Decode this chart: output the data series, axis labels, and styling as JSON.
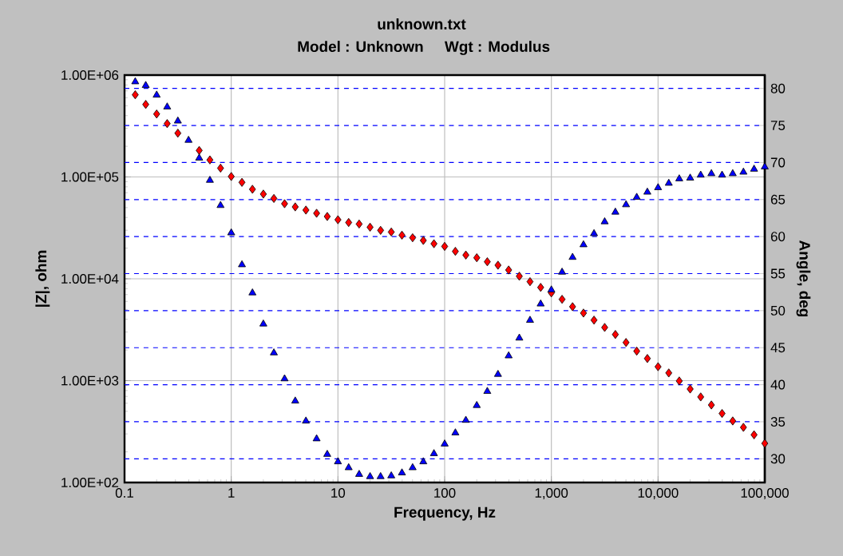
{
  "chart_data": {
    "type": "scatter",
    "title": "unknown.txt",
    "subtitle": "Model : Unknown     Wgt : Modulus",
    "xlabel": "Frequency,  Hz",
    "ylabel": "|Z|, ohm",
    "y2label": "Angle, deg",
    "log": "xy",
    "grid": true,
    "xlim": [
      0.1,
      100000
    ],
    "xticks": [
      0.1,
      1,
      10,
      100,
      {
        "value": 1000,
        "label": "1,000"
      },
      {
        "value": 10000,
        "label": "10,000"
      },
      {
        "value": 100000,
        "label": "100,000"
      }
    ],
    "ylim": [
      100,
      1000000
    ],
    "yticks": [
      {
        "value": 100,
        "label": "1.00E+02"
      },
      {
        "value": 1000,
        "label": "1.00E+03"
      },
      {
        "value": 10000,
        "label": "1.00E+04"
      },
      {
        "value": 100000,
        "label": "1.00E+05"
      },
      {
        "value": 1000000,
        "label": "1.00E+06"
      }
    ],
    "y2lim": [
      26.8,
      81.8
    ],
    "y2ticks": [
      30,
      35,
      40,
      45,
      50,
      55,
      60,
      65,
      70,
      75,
      80
    ],
    "x": [
      0.126,
      0.158,
      0.2,
      0.251,
      0.316,
      0.398,
      0.501,
      0.631,
      0.794,
      1,
      1.26,
      1.58,
      2,
      2.51,
      3.16,
      3.98,
      5.01,
      6.31,
      7.94,
      10,
      12.6,
      15.8,
      20,
      25.1,
      31.6,
      39.8,
      50.1,
      63.1,
      79.4,
      100,
      126,
      158,
      200,
      251,
      316,
      398,
      501,
      631,
      794,
      1000,
      1260,
      1580,
      2000,
      2510,
      3160,
      3980,
      5010,
      6310,
      7940,
      10000,
      12600,
      15800,
      20000,
      25100,
      31600,
      39800,
      50100,
      63100,
      79400,
      100000
    ],
    "series": [
      {
        "color": "#ff0000",
        "marker": "diamond",
        "values": [
          641000,
          515000,
          415000,
          334000,
          269000,
          null,
          182000,
          147000,
          122000,
          101000,
          88500,
          75700,
          67900,
          61500,
          54600,
          50800,
          47300,
          44000,
          40900,
          38000,
          35700,
          34500,
          32100,
          29900,
          28800,
          26800,
          25300,
          23800,
          22100,
          20800,
          18600,
          17100,
          16100,
          14700,
          13600,
          12200,
          10600,
          9370,
          8230,
          7270,
          6290,
          5320,
          4610,
          3930,
          3330,
          2840,
          2370,
          1950,
          1650,
          1370,
          1190,
          993,
          828,
          692,
          577,
          476,
          402,
          348,
          294,
          242
        ]
      },
      {
        "color": "#0000ff",
        "marker": "triangle",
        "axis": "y2",
        "values": [
          80.9,
          80.4,
          79.1,
          77.5,
          75.6,
          73.0,
          70.6,
          67.6,
          64.2,
          60.5,
          56.2,
          52.4,
          48.2,
          44.3,
          40.8,
          37.8,
          35.1,
          32.7,
          30.6,
          29.6,
          28.8,
          27.9,
          27.6,
          27.6,
          27.7,
          28.1,
          28.8,
          29.6,
          30.7,
          32.0,
          33.5,
          35.2,
          37.2,
          39.1,
          41.4,
          43.9,
          46.3,
          48.7,
          50.9,
          52.8,
          55.2,
          57.2,
          58.9,
          60.4,
          62.0,
          63.3,
          64.3,
          65.3,
          66.0,
          66.6,
          67.2,
          67.8,
          67.9,
          68.3,
          68.5,
          68.3,
          68.5,
          68.7,
          69.1,
          69.4
        ]
      }
    ]
  }
}
